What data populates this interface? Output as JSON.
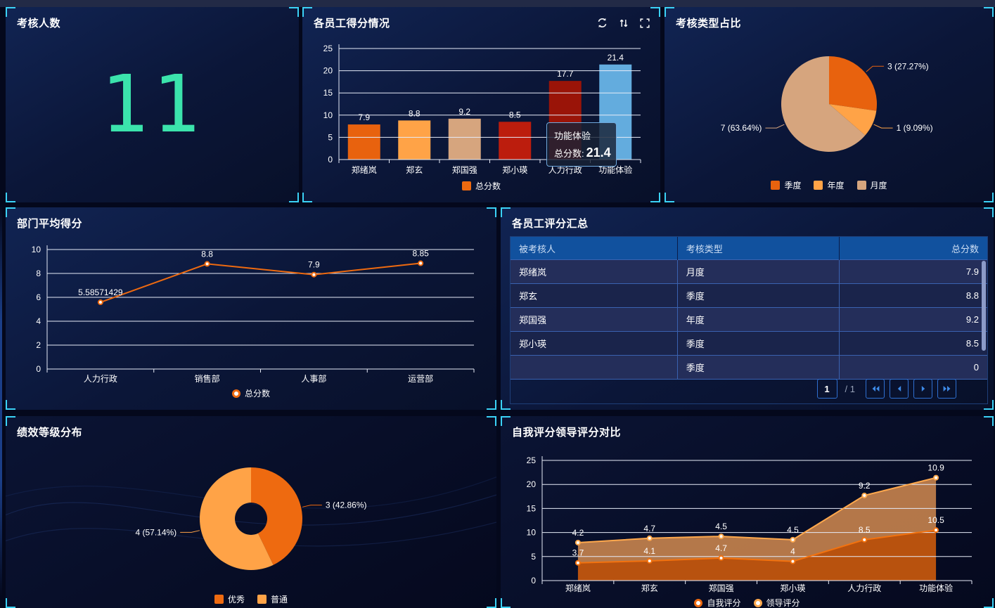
{
  "panels": {
    "kpi": {
      "title": "考核人数",
      "value": "11",
      "value_color": "#3BE3AC"
    },
    "employee_scores": {
      "title": "各员工得分情况",
      "toolbar_icons": [
        "refresh-icon",
        "sort-icon",
        "fullscreen-icon"
      ],
      "legend": [
        {
          "label": "总分数",
          "color": "#EE6A10",
          "shape": "square"
        }
      ],
      "tooltip": {
        "name": "功能体验",
        "series_label": "总分数:",
        "value": "21.4"
      }
    },
    "assess_type": {
      "title": "考核类型占比",
      "legend": [
        {
          "label": "季度",
          "color": "#E8620E",
          "shape": "square"
        },
        {
          "label": "年度",
          "color": "#FFA347",
          "shape": "square"
        },
        {
          "label": "月度",
          "color": "#D6A57E",
          "shape": "square"
        }
      ]
    },
    "dept_avg": {
      "title": "部门平均得分",
      "legend": [
        {
          "label": "总分数",
          "color": "#EE6A10",
          "shape": "circle"
        }
      ]
    },
    "score_table": {
      "title": "各员工评分汇总",
      "columns": [
        "被考核人",
        "考核类型",
        "总分数"
      ],
      "rows": [
        [
          "郑绪岚",
          "月度",
          "7.9"
        ],
        [
          "郑玄",
          "季度",
          "8.8"
        ],
        [
          "郑国强",
          "年度",
          "9.2"
        ],
        [
          "郑小瑛",
          "季度",
          "8.5"
        ],
        [
          "",
          "季度",
          "0"
        ]
      ],
      "pagination": {
        "current": "1",
        "total": "/ 1"
      }
    },
    "grade_dist": {
      "title": "绩效等级分布",
      "legend": [
        {
          "label": "优秀",
          "color": "#EE6A10",
          "shape": "square"
        },
        {
          "label": "普通",
          "color": "#FFA347",
          "shape": "square"
        }
      ]
    },
    "self_leader": {
      "title": "自我评分领导评分对比",
      "legend": [
        {
          "label": "自我评分",
          "color": "#EE6A10",
          "shape": "circle"
        },
        {
          "label": "领导评分",
          "color": "#FFA94D",
          "shape": "circle"
        }
      ]
    }
  },
  "chart_data": [
    {
      "id": "employee-scores-bar",
      "type": "bar",
      "title": "各员工得分情况",
      "categories": [
        "郑绪岚",
        "郑玄",
        "郑国强",
        "郑小瑛",
        "人力行政",
        "功能体验"
      ],
      "series": [
        {
          "name": "总分数",
          "values": [
            7.9,
            8.8,
            9.2,
            8.5,
            17.7,
            21.4
          ],
          "labels": [
            "7.9",
            "8.8",
            "9.2",
            "8.5",
            "17.7",
            "21.4"
          ]
        }
      ],
      "bar_colors": [
        "#E8620E",
        "#FFA347",
        "#D6A57E",
        "#BC1D0D",
        "#9A1408",
        "#63ACDE"
      ],
      "ylim": [
        0,
        25
      ],
      "yticks": [
        0,
        5,
        10,
        15,
        20,
        25
      ],
      "grid": true,
      "legend_position": "bottom"
    },
    {
      "id": "assess-type-pie",
      "type": "pie",
      "title": "考核类型占比",
      "labels": [
        "季度",
        "年度",
        "月度"
      ],
      "values": [
        3,
        1,
        7
      ],
      "percents": [
        "27.27%",
        "9.09%",
        "63.64%"
      ],
      "colors": [
        "#E8620E",
        "#FFA347",
        "#D6A57E"
      ],
      "legend_position": "bottom"
    },
    {
      "id": "dept-avg-line",
      "type": "line",
      "title": "部门平均得分",
      "categories": [
        "人力行政",
        "销售部",
        "人事部",
        "运营部"
      ],
      "series": [
        {
          "name": "总分数",
          "values": [
            5.58571429,
            8.8,
            7.9,
            8.85
          ],
          "labels": [
            "5.58571429",
            "8.8",
            "7.9",
            "8.85"
          ],
          "color": "#EE6A10"
        }
      ],
      "ylim": [
        0,
        10
      ],
      "yticks": [
        0,
        2,
        4,
        6,
        8,
        10
      ],
      "grid": true,
      "legend_position": "bottom"
    },
    {
      "id": "grade-donut",
      "type": "pie",
      "subtype": "donut",
      "title": "绩效等级分布",
      "labels": [
        "优秀",
        "普通"
      ],
      "values": [
        3,
        4
      ],
      "percents": [
        "42.86%",
        "57.14%"
      ],
      "colors": [
        "#EE6A10",
        "#FFA347"
      ],
      "legend_position": "bottom"
    },
    {
      "id": "self-vs-leader-area",
      "type": "area",
      "stacked": true,
      "title": "自我评分领导评分对比",
      "categories": [
        "郑绪岚",
        "郑玄",
        "郑国强",
        "郑小瑛",
        "人力行政",
        "功能体验"
      ],
      "series": [
        {
          "name": "自我评分",
          "values": [
            3.7,
            4.1,
            4.7,
            4,
            8.5,
            10.5
          ],
          "labels": [
            "3.7",
            "4.1",
            "4.7",
            "4",
            "8.5",
            "10.5"
          ],
          "color": "#F2720F",
          "fill": "#C2560E"
        },
        {
          "name": "领导评分",
          "values": [
            4.2,
            4.7,
            4.5,
            4.5,
            9.2,
            10.9
          ],
          "labels": [
            "4.2",
            "4.7",
            "4.5",
            "4.5",
            "9.2",
            "10.9"
          ],
          "color": "#FFA94D",
          "fill": "#D28B50"
        }
      ],
      "ylim": [
        0,
        25
      ],
      "yticks": [
        0,
        5,
        10,
        15,
        20,
        25
      ],
      "grid": true,
      "legend_position": "bottom"
    }
  ]
}
